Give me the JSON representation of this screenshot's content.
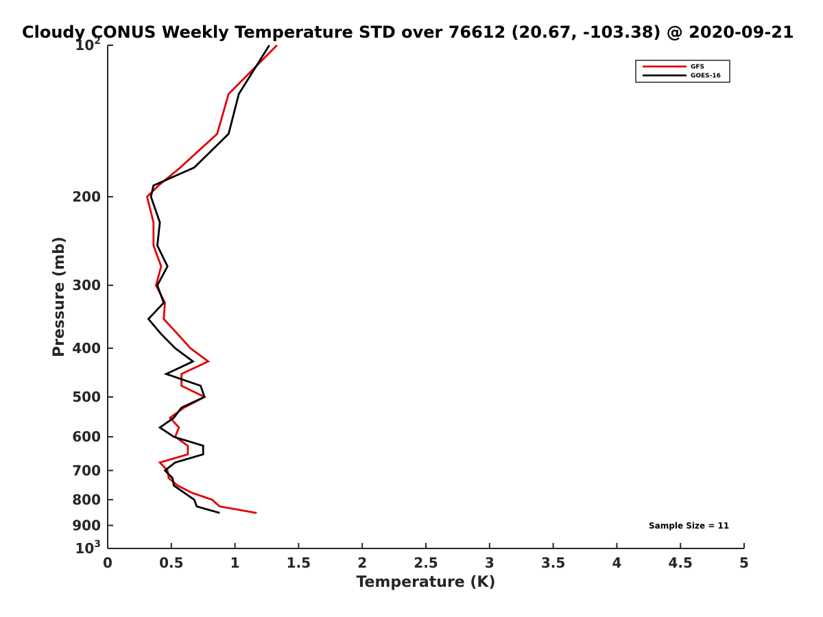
{
  "chart_data": {
    "type": "line",
    "title": "Cloudy CONUS Weekly Temperature STD over 76612 (20.67, -103.38) @ 2020-09-21",
    "xlabel": "Temperature (K)",
    "ylabel": "Pressure (mb)",
    "xlim": [
      0,
      5
    ],
    "ylim": [
      100,
      1000
    ],
    "y_scale": "log",
    "y_reversed": true,
    "grid": false,
    "legend_position": "top-right",
    "x_ticks": [
      "0",
      "0.5",
      "1",
      "1.5",
      "2",
      "2.5",
      "3",
      "3.5",
      "4",
      "4.5",
      "5"
    ],
    "y_ticks": [
      {
        "value": 100,
        "base": "10",
        "exp": "2"
      },
      {
        "value": 200,
        "label": "200"
      },
      {
        "value": 300,
        "label": "300"
      },
      {
        "value": 400,
        "label": "400"
      },
      {
        "value": 500,
        "label": "500"
      },
      {
        "value": 600,
        "label": "600"
      },
      {
        "value": 700,
        "label": "700"
      },
      {
        "value": 800,
        "label": "800"
      },
      {
        "value": 900,
        "label": "900"
      },
      {
        "value": 1000,
        "base": "10",
        "exp": "3"
      }
    ],
    "series": [
      {
        "name": "GFS",
        "color": "#e00000",
        "points": [
          [
            1.33,
            100
          ],
          [
            0.95,
            125
          ],
          [
            0.86,
            150
          ],
          [
            0.57,
            175
          ],
          [
            0.4,
            190
          ],
          [
            0.31,
            200
          ],
          [
            0.36,
            225
          ],
          [
            0.36,
            250
          ],
          [
            0.42,
            275
          ],
          [
            0.38,
            300
          ],
          [
            0.45,
            325
          ],
          [
            0.44,
            350
          ],
          [
            0.55,
            375
          ],
          [
            0.65,
            400
          ],
          [
            0.79,
            425
          ],
          [
            0.58,
            450
          ],
          [
            0.58,
            475
          ],
          [
            0.76,
            500
          ],
          [
            0.6,
            525
          ],
          [
            0.49,
            550
          ],
          [
            0.56,
            575
          ],
          [
            0.53,
            600
          ],
          [
            0.63,
            625
          ],
          [
            0.63,
            650
          ],
          [
            0.41,
            675
          ],
          [
            0.47,
            700
          ],
          [
            0.48,
            725
          ],
          [
            0.55,
            750
          ],
          [
            0.66,
            775
          ],
          [
            0.82,
            800
          ],
          [
            0.88,
            825
          ],
          [
            1.17,
            850
          ]
        ]
      },
      {
        "name": "GOES-16",
        "color": "#000000",
        "points": [
          [
            1.27,
            100
          ],
          [
            1.03,
            125
          ],
          [
            0.95,
            150
          ],
          [
            0.68,
            175
          ],
          [
            0.36,
            190
          ],
          [
            0.34,
            200
          ],
          [
            0.41,
            225
          ],
          [
            0.39,
            250
          ],
          [
            0.47,
            275
          ],
          [
            0.39,
            300
          ],
          [
            0.44,
            325
          ],
          [
            0.32,
            350
          ],
          [
            0.42,
            375
          ],
          [
            0.53,
            400
          ],
          [
            0.67,
            425
          ],
          [
            0.46,
            450
          ],
          [
            0.73,
            475
          ],
          [
            0.76,
            500
          ],
          [
            0.58,
            525
          ],
          [
            0.52,
            550
          ],
          [
            0.41,
            575
          ],
          [
            0.52,
            600
          ],
          [
            0.75,
            625
          ],
          [
            0.75,
            650
          ],
          [
            0.53,
            675
          ],
          [
            0.45,
            700
          ],
          [
            0.51,
            725
          ],
          [
            0.52,
            750
          ],
          [
            0.6,
            775
          ],
          [
            0.68,
            800
          ],
          [
            0.7,
            825
          ],
          [
            0.88,
            850
          ]
        ]
      }
    ],
    "legend": [
      "GFS",
      "GOES-16"
    ],
    "annotation": "Sample Size = 11"
  }
}
